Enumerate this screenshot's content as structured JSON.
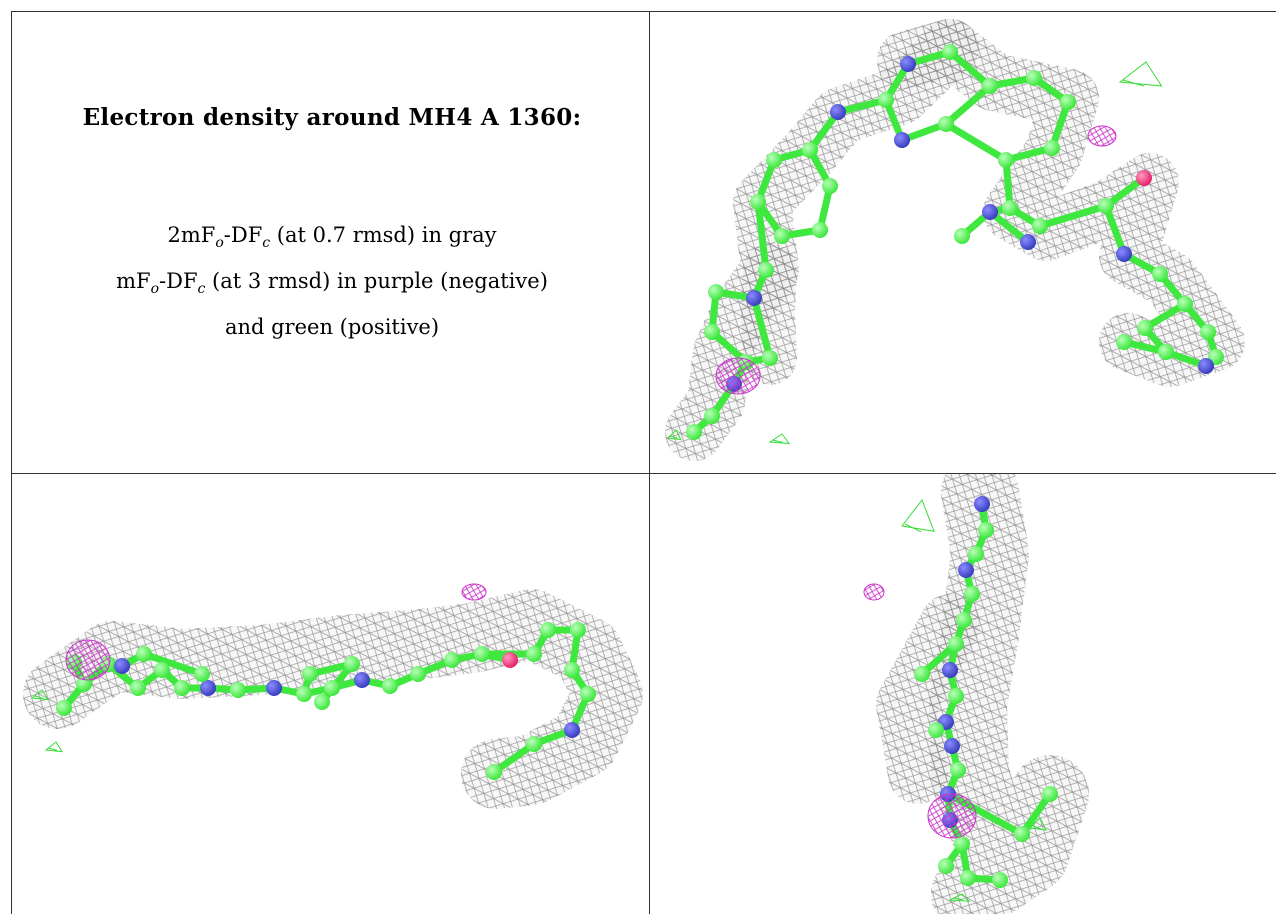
{
  "heading": "Electron density around MH4 A 1360:",
  "caption": {
    "line1": {
      "prefix": "2mF",
      "sub_o": "o",
      "mid": "-DF",
      "sub_c": "c",
      "suffix": " (at 0.7 rmsd) in gray"
    },
    "line2": {
      "prefix": "mF",
      "sub_o": "o",
      "mid": "-DF",
      "sub_c": "c",
      "suffix": " (at 3 rmsd) in purple (negative)"
    },
    "line3": "and green (positive)"
  },
  "colors": {
    "carbon": "#3ee83e",
    "nitrogen": "#3a3fbf",
    "oxygen": "#e8226a",
    "density_2fofc": "#8a8a8a",
    "diff_negative": "#cc33cc",
    "diff_positive": "#33dd33"
  },
  "panels": [
    {
      "id": "view-top",
      "position": "top-right"
    },
    {
      "id": "view-side",
      "position": "bottom-left"
    },
    {
      "id": "view-end",
      "position": "bottom-right"
    }
  ]
}
